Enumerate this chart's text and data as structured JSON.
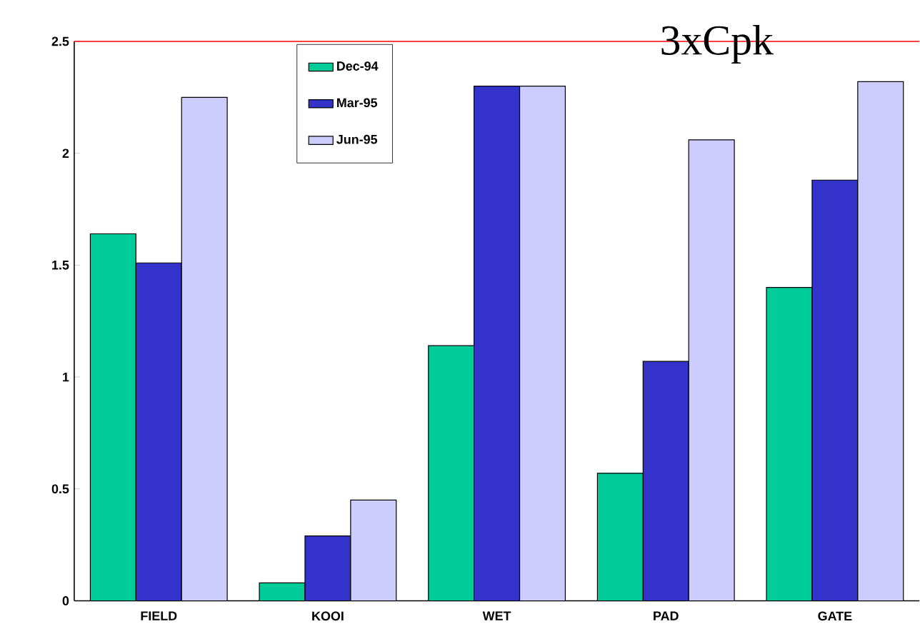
{
  "chart_data": {
    "type": "bar",
    "categories": [
      "FIELD",
      "KOOI",
      "WET",
      "PAD",
      "GATE"
    ],
    "series": [
      {
        "name": "Dec-94",
        "color": "#00cc99",
        "values": [
          1.64,
          0.08,
          1.14,
          0.57,
          1.4
        ]
      },
      {
        "name": "Mar-95",
        "color": "#3333cc",
        "values": [
          1.51,
          0.29,
          2.3,
          1.07,
          1.88
        ]
      },
      {
        "name": "Jun-95",
        "color": "#ccccff",
        "values": [
          2.25,
          0.45,
          2.3,
          2.06,
          2.32
        ]
      }
    ],
    "ylim": [
      0,
      2.5
    ],
    "yticks": [
      0,
      0.5,
      1,
      1.5,
      2,
      2.5
    ],
    "grid": false,
    "legend": "top",
    "ref_lines": [
      {
        "axis": "y",
        "value": 2.5,
        "label": "3xCpk",
        "color": "#ff0000"
      }
    ]
  }
}
